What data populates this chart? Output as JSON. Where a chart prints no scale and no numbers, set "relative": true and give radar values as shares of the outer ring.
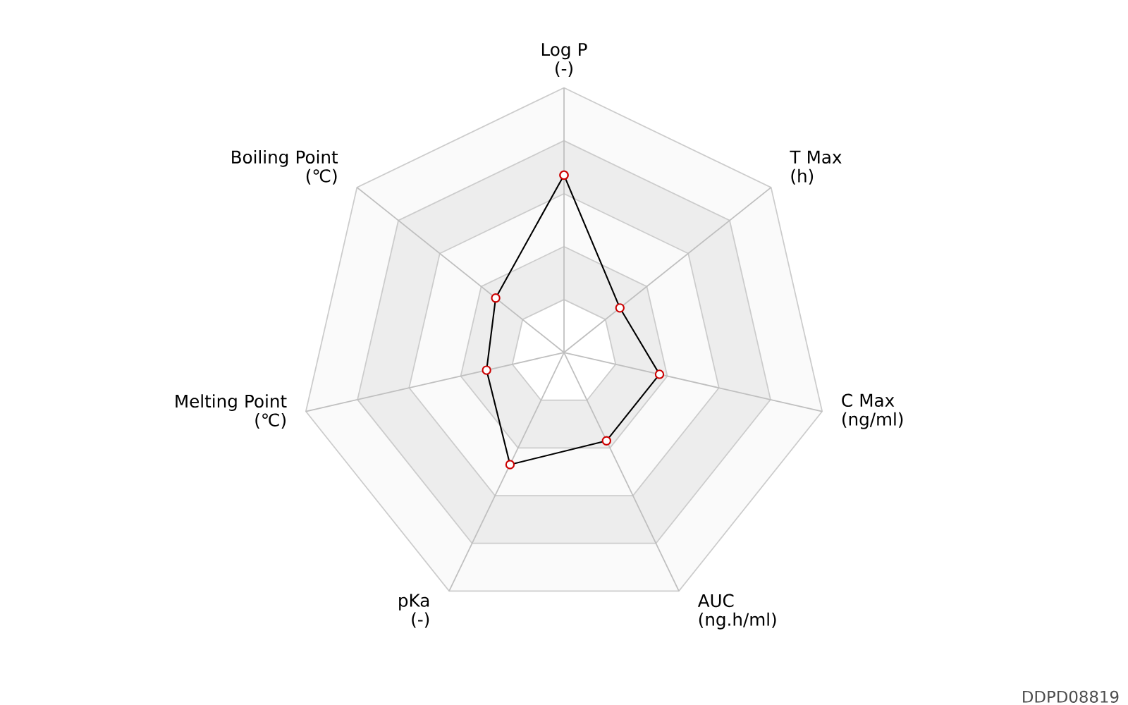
{
  "chart_data": {
    "type": "radar",
    "relative": true,
    "categories": [
      "Log P\n(-)",
      "T Max\n(h)",
      "C Max\n(ng/ml)",
      "AUC\n(ng.h/ml)",
      "pKa\n(-)",
      "Melting Point\n(℃)",
      "Boiling Point\n(℃)"
    ],
    "series": [
      {
        "color": "#000000",
        "values": [
          0.67,
          0.27,
          0.37,
          0.37,
          0.47,
          0.3,
          0.33
        ]
      }
    ],
    "marker": "circle",
    "annotations": [
      "DDPD08819"
    ]
  }
}
